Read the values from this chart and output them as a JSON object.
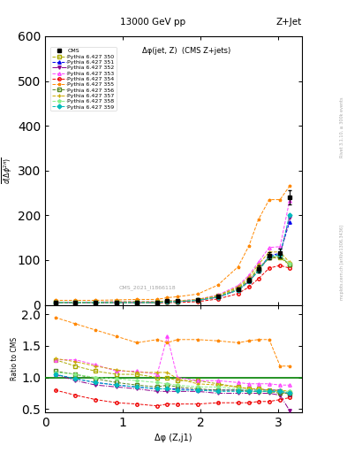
{
  "title_top": "13000 GeV pp",
  "title_right": "Z+Jet",
  "inner_title": "Δφ(jet, Z)  (CMS Z+jets)",
  "watermark": "CMS_2021_I1866118",
  "ylabel_ratio": "Ratio to CMS",
  "xlabel": "Δφ (Z,j1)",
  "right_label": "Rivet 3.1.10, ≥ 300k events",
  "right_label2": "mcplots.cern.ch [arXiv:1306.3436]",
  "xdata": [
    0.13,
    0.39,
    0.65,
    0.92,
    1.18,
    1.44,
    1.57,
    1.7,
    1.96,
    2.22,
    2.48,
    2.62,
    2.74,
    2.88,
    3.02,
    3.14
  ],
  "cms_y": [
    5,
    5,
    5,
    5,
    5,
    5,
    8,
    8,
    10,
    18,
    35,
    55,
    80,
    110,
    115,
    240
  ],
  "cms_yerr": [
    0.5,
    0.5,
    0.5,
    0.5,
    0.5,
    0.5,
    1,
    1,
    1,
    2,
    3,
    5,
    7,
    8,
    10,
    15
  ],
  "series": [
    {
      "label": "Pythia 6.427 350",
      "color": "#aaaa00",
      "marker": "s",
      "fillstyle": "none",
      "linestyle": "--",
      "y": [
        6,
        6,
        6,
        6,
        6,
        6,
        8,
        8,
        11,
        20,
        38,
        57,
        82,
        105,
        105,
        90
      ],
      "ratio": [
        1.28,
        1.18,
        1.1,
        1.05,
        1.05,
        1.0,
        1.0,
        0.95,
        0.95,
        0.9,
        0.85,
        0.82,
        0.82,
        0.8,
        0.78,
        0.73
      ]
    },
    {
      "label": "Pythia 6.427 351",
      "color": "#0000ee",
      "marker": "^",
      "fillstyle": "full",
      "linestyle": "--",
      "y": [
        5,
        5,
        5,
        5,
        5,
        5,
        7,
        7,
        10,
        17,
        33,
        52,
        76,
        110,
        115,
        185
      ],
      "ratio": [
        1.05,
        0.98,
        0.92,
        0.88,
        0.85,
        0.82,
        0.82,
        0.82,
        0.8,
        0.8,
        0.8,
        0.8,
        0.8,
        0.8,
        0.8,
        0.73
      ]
    },
    {
      "label": "Pythia 6.427 352",
      "color": "#8b008b",
      "marker": "v",
      "fillstyle": "full",
      "linestyle": "-.",
      "y": [
        5,
        5,
        5,
        5,
        5,
        5,
        7,
        7,
        10,
        17,
        33,
        52,
        76,
        108,
        112,
        195
      ],
      "ratio": [
        1.05,
        0.95,
        0.88,
        0.85,
        0.82,
        0.78,
        0.78,
        0.78,
        0.78,
        0.75,
        0.75,
        0.75,
        0.75,
        0.75,
        0.72,
        0.48
      ]
    },
    {
      "label": "Pythia 6.427 353",
      "color": "#ff44ff",
      "marker": "^",
      "fillstyle": "none",
      "linestyle": "--",
      "y": [
        6,
        6,
        6,
        7,
        7,
        7,
        9,
        9,
        12,
        22,
        43,
        66,
        95,
        128,
        130,
        232
      ],
      "ratio": [
        1.28,
        1.28,
        1.2,
        1.1,
        1.1,
        1.05,
        1.65,
        1.0,
        0.95,
        0.95,
        0.92,
        0.9,
        0.9,
        0.9,
        0.88,
        0.88
      ]
    },
    {
      "label": "Pythia 6.427 354",
      "color": "#ee0000",
      "marker": "o",
      "fillstyle": "none",
      "linestyle": "--",
      "y": [
        4,
        4,
        4,
        4,
        4,
        4,
        5,
        5,
        7,
        13,
        25,
        40,
        58,
        82,
        88,
        82
      ],
      "ratio": [
        0.8,
        0.72,
        0.65,
        0.6,
        0.58,
        0.55,
        0.58,
        0.58,
        0.58,
        0.6,
        0.6,
        0.6,
        0.62,
        0.62,
        0.65,
        0.68
      ]
    },
    {
      "label": "Pythia 6.427 355",
      "color": "#ff8800",
      "marker": "*",
      "fillstyle": "full",
      "linestyle": "--",
      "y": [
        10,
        10,
        10,
        11,
        12,
        12,
        16,
        18,
        24,
        44,
        85,
        132,
        190,
        235,
        235,
        265
      ],
      "ratio": [
        1.95,
        1.85,
        1.75,
        1.65,
        1.55,
        1.6,
        1.55,
        1.6,
        1.6,
        1.58,
        1.55,
        1.58,
        1.6,
        1.6,
        1.18,
        1.18
      ]
    },
    {
      "label": "Pythia 6.427 356",
      "color": "#558822",
      "marker": "s",
      "fillstyle": "none",
      "linestyle": "--",
      "y": [
        5,
        5,
        5,
        5,
        5,
        5,
        7,
        7,
        10,
        18,
        35,
        54,
        78,
        105,
        108,
        90
      ],
      "ratio": [
        1.1,
        1.05,
        0.98,
        0.92,
        0.88,
        0.85,
        0.88,
        0.85,
        0.82,
        0.8,
        0.8,
        0.78,
        0.78,
        0.78,
        0.75,
        0.75
      ]
    },
    {
      "label": "Pythia 6.427 357",
      "color": "#ccaa00",
      "marker": "+",
      "fillstyle": "full",
      "linestyle": "--",
      "y": [
        6,
        6,
        6,
        7,
        7,
        7,
        9,
        9,
        12,
        21,
        40,
        62,
        90,
        118,
        118,
        95
      ],
      "ratio": [
        1.3,
        1.25,
        1.18,
        1.12,
        1.08,
        1.08,
        1.08,
        0.98,
        0.9,
        0.88,
        0.85,
        0.82,
        0.82,
        0.8,
        0.8,
        0.78
      ]
    },
    {
      "label": "Pythia 6.427 358",
      "color": "#88ee88",
      "marker": "p",
      "fillstyle": "full",
      "linestyle": "--",
      "y": [
        5,
        5,
        5,
        5,
        5,
        5,
        7,
        7,
        10,
        17,
        33,
        52,
        76,
        108,
        110,
        92
      ],
      "ratio": [
        1.08,
        1.05,
        1.0,
        0.98,
        0.95,
        0.92,
        0.9,
        0.88,
        0.85,
        0.85,
        0.82,
        0.8,
        0.8,
        0.78,
        0.78,
        0.78
      ]
    },
    {
      "label": "Pythia 6.427 359",
      "color": "#00bbbb",
      "marker": "D",
      "fillstyle": "full",
      "linestyle": "--",
      "y": [
        5,
        5,
        5,
        5,
        5,
        5,
        7,
        7,
        10,
        17,
        33,
        52,
        76,
        108,
        112,
        200
      ],
      "ratio": [
        1.05,
        0.98,
        0.92,
        0.88,
        0.85,
        0.82,
        0.82,
        0.8,
        0.8,
        0.78,
        0.78,
        0.78,
        0.78,
        0.78,
        0.78,
        0.75
      ]
    }
  ],
  "xlim": [
    0.0,
    3.3
  ],
  "ylim_main": [
    0,
    600
  ],
  "ylim_ratio": [
    0.45,
    2.15
  ],
  "yticks_main": [
    0,
    100,
    200,
    300,
    400,
    500,
    600
  ],
  "yticks_ratio": [
    0.5,
    1.0,
    1.5,
    2.0
  ],
  "xticks": [
    0,
    1,
    2,
    3
  ]
}
